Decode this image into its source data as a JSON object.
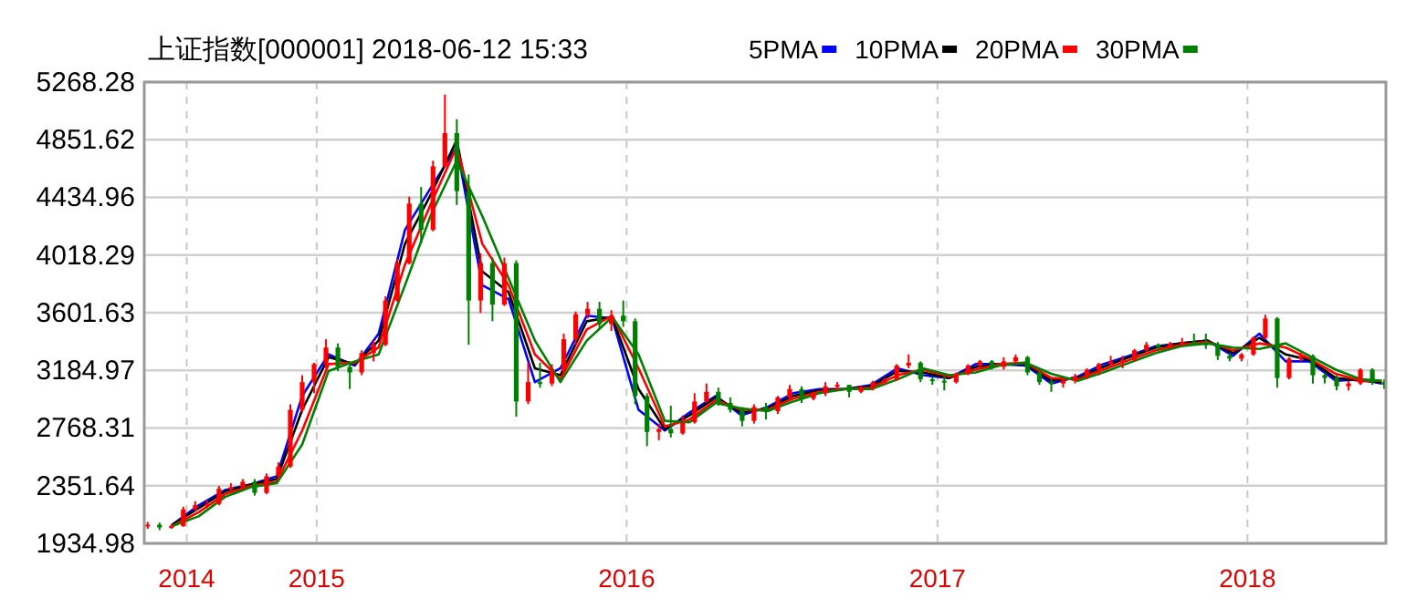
{
  "chart_data": {
    "type": "candlestick",
    "title": "上证指数[000001] 2018-06-12 15:33",
    "xlim": [
      "2014-06-12",
      "2018-06-13"
    ],
    "xticks": [
      {
        "value": "2014-08-01",
        "label": "2014"
      },
      {
        "value": "2015-01-01",
        "label": "2015"
      },
      {
        "value": "2016-01-01",
        "label": "2016"
      },
      {
        "value": "2017-01-01",
        "label": "2017"
      },
      {
        "value": "2018-01-01",
        "label": "2018"
      }
    ],
    "ylim": [
      1934.98,
      5268.28
    ],
    "yticks": [
      1934.98,
      2351.64,
      2768.31,
      3184.97,
      3601.63,
      4018.29,
      4434.96,
      4851.62,
      5268.28
    ],
    "grid": true,
    "legend": "top",
    "series": [
      {
        "x": [
          "2014-06-16",
          "2014-06-30",
          "2014-07-14",
          "2014-07-28",
          "2014-08-11",
          "2014-08-25",
          "2014-09-08",
          "2014-09-22",
          "2014-10-06",
          "2014-10-20",
          "2014-11-03",
          "2014-11-17",
          "2014-12-01",
          "2014-12-15",
          "2014-12-29",
          "2015-01-12",
          "2015-01-26",
          "2015-02-09",
          "2015-02-23",
          "2015-03-09",
          "2015-03-23",
          "2015-04-06",
          "2015-04-20",
          "2015-05-04",
          "2015-05-18",
          "2015-06-01",
          "2015-06-15",
          "2015-06-29",
          "2015-07-13",
          "2015-07-27",
          "2015-08-10",
          "2015-08-24",
          "2015-09-07",
          "2015-09-21",
          "2015-10-05",
          "2015-10-19",
          "2015-11-02",
          "2015-11-16",
          "2015-11-30",
          "2015-12-14",
          "2015-12-28",
          "2016-01-11",
          "2016-01-25",
          "2016-02-08",
          "2016-02-22",
          "2016-03-07",
          "2016-03-21",
          "2016-04-04",
          "2016-04-18",
          "2016-05-02",
          "2016-05-16",
          "2016-05-30",
          "2016-06-13",
          "2016-06-27",
          "2016-07-11",
          "2016-07-25",
          "2016-08-08",
          "2016-08-22",
          "2016-09-05",
          "2016-09-19",
          "2016-10-03",
          "2016-10-17",
          "2016-10-31",
          "2016-11-14",
          "2016-11-28",
          "2016-12-12",
          "2016-12-26",
          "2017-01-09",
          "2017-01-23",
          "2017-02-06",
          "2017-02-20",
          "2017-03-06",
          "2017-03-20",
          "2017-04-03",
          "2017-04-17",
          "2017-05-01",
          "2017-05-15",
          "2017-05-29",
          "2017-06-12",
          "2017-06-26",
          "2017-07-10",
          "2017-07-24",
          "2017-08-07",
          "2017-08-21",
          "2017-09-04",
          "2017-09-18",
          "2017-10-02",
          "2017-10-16",
          "2017-10-30",
          "2017-11-13",
          "2017-11-27",
          "2017-12-11",
          "2017-12-25",
          "2018-01-08",
          "2018-01-22",
          "2018-02-05",
          "2018-02-19",
          "2018-03-05",
          "2018-03-19",
          "2018-04-02",
          "2018-04-16",
          "2018-04-30",
          "2018-05-14",
          "2018-05-28",
          "2018-06-11"
        ],
        "ohlc": [
          [
            2060,
            2090,
            2040,
            2070
          ],
          [
            2070,
            2085,
            2030,
            2050
          ],
          [
            2050,
            2075,
            2040,
            2060
          ],
          [
            2060,
            2200,
            2055,
            2180
          ],
          [
            2180,
            2240,
            2170,
            2210
          ],
          [
            2210,
            2245,
            2190,
            2220
          ],
          [
            2220,
            2350,
            2210,
            2330
          ],
          [
            2330,
            2370,
            2300,
            2340
          ],
          [
            2340,
            2400,
            2320,
            2380
          ],
          [
            2380,
            2400,
            2280,
            2300
          ],
          [
            2300,
            2440,
            2290,
            2420
          ],
          [
            2420,
            2520,
            2400,
            2490
          ],
          [
            2490,
            2940,
            2480,
            2900
          ],
          [
            2900,
            3150,
            2880,
            3100
          ],
          [
            3100,
            3240,
            3020,
            3230
          ],
          [
            3230,
            3410,
            3200,
            3350
          ],
          [
            3350,
            3380,
            3180,
            3210
          ],
          [
            3210,
            3250,
            3050,
            3170
          ],
          [
            3170,
            3330,
            3150,
            3310
          ],
          [
            3310,
            3400,
            3250,
            3370
          ],
          [
            3370,
            3720,
            3360,
            3690
          ],
          [
            3690,
            3990,
            3680,
            3960
          ],
          [
            3960,
            4440,
            3950,
            4390
          ],
          [
            4390,
            4510,
            4100,
            4200
          ],
          [
            4200,
            4700,
            4190,
            4660
          ],
          [
            4660,
            5178,
            4650,
            4900
          ],
          [
            4900,
            5000,
            4380,
            4480
          ],
          [
            4480,
            4600,
            3370,
            3690
          ],
          [
            3690,
            4030,
            3600,
            3960
          ],
          [
            3960,
            4000,
            3540,
            3660
          ],
          [
            3660,
            4000,
            3650,
            3960
          ],
          [
            3960,
            3980,
            2850,
            2960
          ],
          [
            2960,
            3240,
            2940,
            3100
          ],
          [
            3100,
            3240,
            3060,
            3090
          ],
          [
            3090,
            3230,
            3070,
            3180
          ],
          [
            3180,
            3450,
            3150,
            3410
          ],
          [
            3410,
            3610,
            3370,
            3590
          ],
          [
            3590,
            3680,
            3560,
            3630
          ],
          [
            3630,
            3680,
            3480,
            3520
          ],
          [
            3520,
            3620,
            3470,
            3580
          ],
          [
            3580,
            3690,
            3500,
            3540
          ],
          [
            3540,
            3560,
            2940,
            3000
          ],
          [
            3000,
            3020,
            2638,
            2740
          ],
          [
            2740,
            2800,
            2680,
            2760
          ],
          [
            2760,
            2930,
            2700,
            2730
          ],
          [
            2730,
            2860,
            2720,
            2810
          ],
          [
            2810,
            3020,
            2800,
            2960
          ],
          [
            2960,
            3090,
            2950,
            3030
          ],
          [
            3030,
            3060,
            2930,
            2950
          ],
          [
            2950,
            2990,
            2880,
            2900
          ],
          [
            2900,
            2920,
            2780,
            2820
          ],
          [
            2820,
            2940,
            2800,
            2920
          ],
          [
            2920,
            2950,
            2830,
            2890
          ],
          [
            2890,
            3000,
            2870,
            2990
          ],
          [
            2990,
            3080,
            2980,
            3050
          ],
          [
            3050,
            3070,
            2950,
            2980
          ],
          [
            2980,
            3030,
            2970,
            3020
          ],
          [
            3020,
            3100,
            3000,
            3070
          ],
          [
            3070,
            3100,
            3040,
            3080
          ],
          [
            3080,
            3080,
            2990,
            3030
          ],
          [
            3030,
            3070,
            3020,
            3060
          ],
          [
            3060,
            3110,
            3040,
            3100
          ],
          [
            3100,
            3130,
            3080,
            3120
          ],
          [
            3120,
            3230,
            3110,
            3220
          ],
          [
            3220,
            3300,
            3200,
            3240
          ],
          [
            3240,
            3250,
            3100,
            3120
          ],
          [
            3120,
            3140,
            3080,
            3110
          ],
          [
            3110,
            3140,
            3040,
            3100
          ],
          [
            3100,
            3170,
            3090,
            3160
          ],
          [
            3160,
            3230,
            3150,
            3220
          ],
          [
            3220,
            3260,
            3200,
            3250
          ],
          [
            3250,
            3260,
            3190,
            3210
          ],
          [
            3210,
            3280,
            3190,
            3250
          ],
          [
            3250,
            3300,
            3230,
            3280
          ],
          [
            3280,
            3290,
            3150,
            3170
          ],
          [
            3170,
            3180,
            3080,
            3100
          ],
          [
            3100,
            3120,
            3030,
            3090
          ],
          [
            3090,
            3130,
            3060,
            3110
          ],
          [
            3110,
            3160,
            3090,
            3140
          ],
          [
            3140,
            3200,
            3120,
            3190
          ],
          [
            3190,
            3240,
            3150,
            3230
          ],
          [
            3230,
            3290,
            3220,
            3250
          ],
          [
            3250,
            3290,
            3200,
            3260
          ],
          [
            3260,
            3340,
            3250,
            3330
          ],
          [
            3330,
            3390,
            3320,
            3370
          ],
          [
            3370,
            3380,
            3330,
            3350
          ],
          [
            3350,
            3390,
            3340,
            3380
          ],
          [
            3380,
            3420,
            3360,
            3390
          ],
          [
            3390,
            3450,
            3370,
            3380
          ],
          [
            3380,
            3450,
            3340,
            3370
          ],
          [
            3370,
            3390,
            3260,
            3290
          ],
          [
            3290,
            3310,
            3250,
            3270
          ],
          [
            3270,
            3310,
            3250,
            3300
          ],
          [
            3300,
            3430,
            3290,
            3420
          ],
          [
            3420,
            3587,
            3410,
            3560
          ],
          [
            3560,
            3570,
            3060,
            3130
          ],
          [
            3130,
            3280,
            3120,
            3270
          ],
          [
            3270,
            3310,
            3250,
            3290
          ],
          [
            3290,
            3300,
            3090,
            3150
          ],
          [
            3150,
            3170,
            3090,
            3130
          ],
          [
            3130,
            3150,
            3040,
            3070
          ],
          [
            3070,
            3110,
            3040,
            3090
          ],
          [
            3090,
            3200,
            3080,
            3190
          ],
          [
            3190,
            3200,
            3080,
            3100
          ],
          [
            3100,
            3120,
            3050,
            3080
          ]
        ],
        "colors": [
          "#ff0000",
          "#008000",
          "#ff0000",
          "#ff0000",
          "#ff0000",
          "#ff0000",
          "#ff0000",
          "#ff0000",
          "#ff0000",
          "#008000",
          "#ff0000",
          "#ff0000",
          "#ff0000",
          "#ff0000",
          "#ff0000",
          "#ff0000",
          "#008000",
          "#008000",
          "#ff0000",
          "#ff0000",
          "#ff0000",
          "#ff0000",
          "#ff0000",
          "#008000",
          "#ff0000",
          "#ff0000",
          "#008000",
          "#008000",
          "#ff0000",
          "#008000",
          "#ff0000",
          "#008000",
          "#ff0000",
          "#008000",
          "#ff0000",
          "#ff0000",
          "#ff0000",
          "#ff0000",
          "#008000",
          "#ff0000",
          "#008000",
          "#008000",
          "#008000",
          "#ff0000",
          "#008000",
          "#ff0000",
          "#ff0000",
          "#ff0000",
          "#008000",
          "#008000",
          "#008000",
          "#ff0000",
          "#008000",
          "#ff0000",
          "#ff0000",
          "#008000",
          "#ff0000",
          "#ff0000",
          "#ff0000",
          "#008000",
          "#ff0000",
          "#ff0000",
          "#ff0000",
          "#ff0000",
          "#ff0000",
          "#008000",
          "#008000",
          "#008000",
          "#ff0000",
          "#ff0000",
          "#ff0000",
          "#008000",
          "#ff0000",
          "#ff0000",
          "#008000",
          "#008000",
          "#008000",
          "#ff0000",
          "#ff0000",
          "#ff0000",
          "#ff0000",
          "#ff0000",
          "#ff0000",
          "#ff0000",
          "#ff0000",
          "#008000",
          "#ff0000",
          "#ff0000",
          "#008000",
          "#008000",
          "#008000",
          "#008000",
          "#ff0000",
          "#ff0000",
          "#ff0000",
          "#008000",
          "#ff0000",
          "#ff0000",
          "#008000",
          "#008000",
          "#008000",
          "#ff0000",
          "#ff0000",
          "#008000",
          "#008000"
        ]
      },
      {
        "type": "line",
        "name": "5PMA",
        "color": "#0000ff",
        "x": [
          "2014-07-15",
          "2014-08-15",
          "2014-09-15",
          "2014-10-15",
          "2014-11-15",
          "2014-12-15",
          "2015-01-15",
          "2015-02-15",
          "2015-03-15",
          "2015-04-15",
          "2015-05-15",
          "2015-06-15",
          "2015-07-15",
          "2015-08-15",
          "2015-09-15",
          "2015-10-15",
          "2015-11-15",
          "2015-12-15",
          "2016-01-15",
          "2016-02-15",
          "2016-03-15",
          "2016-04-15",
          "2016-05-15",
          "2016-06-15",
          "2016-07-15",
          "2016-08-15",
          "2016-09-15",
          "2016-10-15",
          "2016-11-15",
          "2016-12-15",
          "2017-01-15",
          "2017-02-15",
          "2017-03-15",
          "2017-04-15",
          "2017-05-15",
          "2017-06-15",
          "2017-07-15",
          "2017-08-15",
          "2017-09-15",
          "2017-10-15",
          "2017-11-15",
          "2017-12-15",
          "2018-01-15",
          "2018-02-15",
          "2018-03-15",
          "2018-04-15",
          "2018-05-15",
          "2018-06-08"
        ],
        "values": [
          2070,
          2210,
          2320,
          2360,
          2420,
          3000,
          3300,
          3220,
          3450,
          4200,
          4500,
          4800,
          3800,
          3700,
          3100,
          3200,
          3580,
          3560,
          2900,
          2750,
          2880,
          3000,
          2860,
          2920,
          3020,
          3050,
          3050,
          3080,
          3200,
          3150,
          3130,
          3230,
          3230,
          3220,
          3090,
          3140,
          3230,
          3290,
          3360,
          3380,
          3400,
          3290,
          3450,
          3250,
          3250,
          3110,
          3120,
          3090
        ]
      },
      {
        "type": "line",
        "name": "10PMA",
        "color": "#000000",
        "x": [
          "2014-07-15",
          "2014-08-15",
          "2014-09-15",
          "2014-10-15",
          "2014-11-15",
          "2014-12-15",
          "2015-01-15",
          "2015-02-15",
          "2015-03-15",
          "2015-04-15",
          "2015-05-15",
          "2015-06-15",
          "2015-07-15",
          "2015-08-15",
          "2015-09-15",
          "2015-10-15",
          "2015-11-15",
          "2015-12-15",
          "2016-01-15",
          "2016-02-15",
          "2016-03-15",
          "2016-04-15",
          "2016-05-15",
          "2016-06-15",
          "2016-07-15",
          "2016-08-15",
          "2016-09-15",
          "2016-10-15",
          "2016-11-15",
          "2016-12-15",
          "2017-01-15",
          "2017-02-15",
          "2017-03-15",
          "2017-04-15",
          "2017-05-15",
          "2017-06-15",
          "2017-07-15",
          "2017-08-15",
          "2017-09-15",
          "2017-10-15",
          "2017-11-15",
          "2017-12-15",
          "2018-01-15",
          "2018-02-15",
          "2018-03-15",
          "2018-04-15",
          "2018-05-15",
          "2018-06-08"
        ],
        "values": [
          2070,
          2190,
          2310,
          2360,
          2400,
          2900,
          3280,
          3230,
          3400,
          4100,
          4450,
          4850,
          3900,
          3750,
          3200,
          3150,
          3540,
          3570,
          3050,
          2760,
          2860,
          2990,
          2880,
          2910,
          3000,
          3040,
          3050,
          3070,
          3180,
          3170,
          3130,
          3210,
          3230,
          3230,
          3110,
          3130,
          3210,
          3280,
          3350,
          3380,
          3400,
          3310,
          3420,
          3300,
          3260,
          3130,
          3110,
          3100
        ]
      },
      {
        "type": "line",
        "name": "20PMA",
        "color": "#ff0000",
        "x": [
          "2014-07-15",
          "2014-08-15",
          "2014-09-15",
          "2014-10-15",
          "2014-11-15",
          "2014-12-15",
          "2015-01-15",
          "2015-02-15",
          "2015-03-15",
          "2015-04-15",
          "2015-05-15",
          "2015-06-15",
          "2015-07-15",
          "2015-08-15",
          "2015-09-15",
          "2015-10-15",
          "2015-11-15",
          "2015-12-15",
          "2016-01-15",
          "2016-02-15",
          "2016-03-15",
          "2016-04-15",
          "2016-05-15",
          "2016-06-15",
          "2016-07-15",
          "2016-08-15",
          "2016-09-15",
          "2016-10-15",
          "2016-11-15",
          "2016-12-15",
          "2017-01-15",
          "2017-02-15",
          "2017-03-15",
          "2017-04-15",
          "2017-05-15",
          "2017-06-15",
          "2017-07-15",
          "2017-08-15",
          "2017-09-15",
          "2017-10-15",
          "2017-11-15",
          "2017-12-15",
          "2018-01-15",
          "2018-02-15",
          "2018-03-15",
          "2018-04-15",
          "2018-05-15",
          "2018-06-08"
        ],
        "values": [
          2060,
          2160,
          2290,
          2350,
          2380,
          2750,
          3230,
          3240,
          3350,
          3950,
          4380,
          4800,
          4100,
          3800,
          3300,
          3120,
          3480,
          3580,
          3200,
          2780,
          2830,
          2970,
          2900,
          2900,
          2980,
          3030,
          3050,
          3060,
          3150,
          3190,
          3140,
          3190,
          3230,
          3240,
          3130,
          3120,
          3190,
          3260,
          3330,
          3370,
          3390,
          3330,
          3380,
          3350,
          3270,
          3160,
          3110,
          3110
        ]
      },
      {
        "type": "line",
        "name": "30PMA",
        "color": "#008000",
        "x": [
          "2014-07-15",
          "2014-08-15",
          "2014-09-15",
          "2014-10-15",
          "2014-11-15",
          "2014-12-15",
          "2015-01-15",
          "2015-02-15",
          "2015-03-15",
          "2015-04-15",
          "2015-05-15",
          "2015-06-15",
          "2015-07-15",
          "2015-08-15",
          "2015-09-15",
          "2015-10-15",
          "2015-11-15",
          "2015-12-15",
          "2016-01-15",
          "2016-02-15",
          "2016-03-15",
          "2016-04-15",
          "2016-05-15",
          "2016-06-15",
          "2016-07-15",
          "2016-08-15",
          "2016-09-15",
          "2016-10-15",
          "2016-11-15",
          "2016-12-15",
          "2017-01-15",
          "2017-02-15",
          "2017-03-15",
          "2017-04-15",
          "2017-05-15",
          "2017-06-15",
          "2017-07-15",
          "2017-08-15",
          "2017-09-15",
          "2017-10-15",
          "2017-11-15",
          "2017-12-15",
          "2018-01-15",
          "2018-02-15",
          "2018-03-15",
          "2018-04-15",
          "2018-05-15",
          "2018-06-08"
        ],
        "values": [
          2060,
          2130,
          2270,
          2340,
          2370,
          2650,
          3180,
          3250,
          3300,
          3800,
          4300,
          4700,
          4300,
          3850,
          3400,
          3100,
          3400,
          3570,
          3300,
          2820,
          2810,
          2950,
          2910,
          2890,
          2960,
          3020,
          3050,
          3050,
          3120,
          3200,
          3150,
          3170,
          3220,
          3240,
          3160,
          3110,
          3170,
          3240,
          3310,
          3360,
          3380,
          3350,
          3340,
          3380,
          3290,
          3190,
          3120,
          3110
        ]
      }
    ]
  }
}
